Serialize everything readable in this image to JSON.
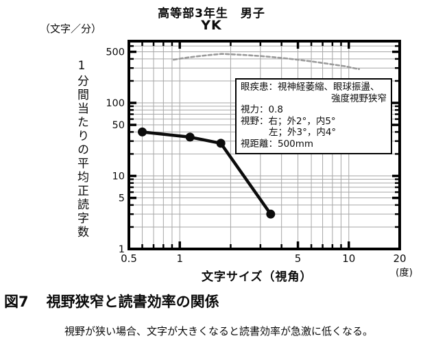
{
  "chart_data": {
    "type": "line",
    "title": "高等部3年生　男子",
    "subtitle": "YK",
    "xlabel": "文字サイズ（視角）",
    "x_unit": "(度)",
    "ylabel": "1分間当たりの平均正読字数",
    "y_unit": "（文字／分）",
    "x_scale": "log",
    "y_scale": "log",
    "xlim": [
      0.5,
      20
    ],
    "ylim": [
      1,
      700
    ],
    "grid": true,
    "grid_color": "#a6a6a6",
    "frame_color": "#000000",
    "x_ticks": [
      {
        "v": 0.5,
        "label": "0.5"
      },
      {
        "v": 1,
        "label": "1"
      },
      {
        "v": 5,
        "label": "5"
      },
      {
        "v": 10,
        "label": "10"
      },
      {
        "v": 20,
        "label": "20"
      }
    ],
    "y_ticks": [
      {
        "v": 500,
        "label": "500"
      },
      {
        "v": 100,
        "label": "100"
      },
      {
        "v": 50,
        "label": "50"
      },
      {
        "v": 10,
        "label": "10"
      },
      {
        "v": 5,
        "label": "5"
      },
      {
        "v": 1,
        "label": "1"
      }
    ],
    "x_major": [
      1,
      5,
      10
    ],
    "y_major": [
      5,
      10,
      50,
      100,
      500
    ],
    "series": [
      {
        "id": "reference-curve-dashed-gray",
        "color": "#9a9a9a",
        "width": 2.6,
        "dash": "5 3.5",
        "marker": "none",
        "points": [
          [
            0.92,
            390
          ],
          [
            1.05,
            410
          ],
          [
            1.25,
            432
          ],
          [
            1.5,
            452
          ],
          [
            1.77,
            468
          ],
          [
            2.1,
            460
          ],
          [
            2.5,
            450
          ],
          [
            3.0,
            438
          ],
          [
            3.5,
            425
          ],
          [
            4.2,
            408
          ],
          [
            5.0,
            390
          ],
          [
            6.0,
            370
          ],
          [
            7.0,
            352
          ],
          [
            8.3,
            332
          ],
          [
            9.5,
            317
          ],
          [
            10.5,
            302
          ],
          [
            11.5,
            290
          ]
        ]
      },
      {
        "id": "YK-low-vision-student",
        "color": "#0c0c0c",
        "width": 4.5,
        "dash": null,
        "marker": "circle",
        "marker_r": 6.5,
        "points": [
          [
            0.6,
            40
          ],
          [
            1.15,
            34
          ],
          [
            1.75,
            28
          ],
          [
            3.45,
            3
          ]
        ]
      }
    ]
  },
  "annotation": {
    "disease_line1": "眼疾患：視神経萎縮、眼球振盪、",
    "disease_line2": "強度視野狭窄",
    "acuity": "視力：0.8",
    "field_right": "視野：右；外2°，内5°",
    "field_left": "左；外3°，内4°",
    "distance": "視距離：500mm"
  },
  "figure": {
    "label": "図7",
    "title": "視野狭窄と読書効率の関係",
    "note": "視野が狭い場合、文字が大きくなると読書効率が急激に低くなる。"
  }
}
